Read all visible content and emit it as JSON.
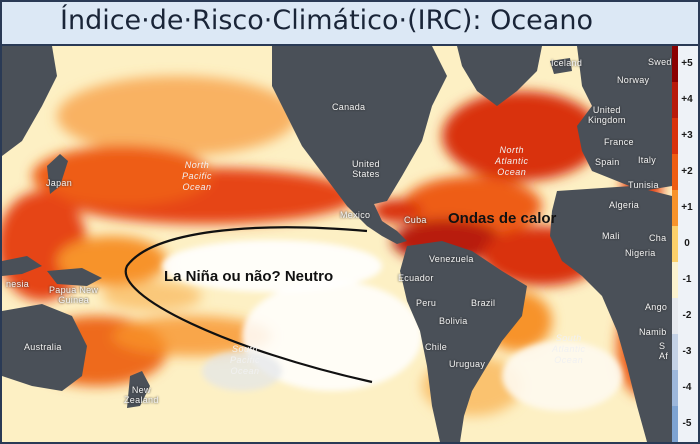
{
  "title": "Índice·de·Risco·Climático·(IRC): Oceano",
  "legend": {
    "ticks": [
      "+5",
      "+4",
      "+3",
      "+2",
      "+1",
      "0",
      "-1",
      "-2",
      "-3",
      "-4",
      "-5"
    ],
    "colors": [
      "#8b0000",
      "#b81a0a",
      "#d9320c",
      "#ee5d12",
      "#f7932a",
      "#fcd06a",
      "#fbf2cf",
      "#e6e9ee",
      "#c4d2e6",
      "#9db7da",
      "#7ea3d1"
    ]
  },
  "annotations": {
    "heatwave": "Ondas de calor",
    "enso": "La Niña ou não? Neutro"
  },
  "places": {
    "canada": "Canada",
    "usa": "United\nStates",
    "mexico": "Mexico",
    "cuba": "Cuba",
    "venezuela": "Venezuela",
    "ecuador": "Ecuador",
    "peru": "Peru",
    "brazil": "Brazil",
    "bolivia": "Bolivia",
    "chile": "Chile",
    "uruguay": "Uruguay",
    "japan": "Japan",
    "indonesia": "nesia",
    "papua": "Papua New\nGuinea",
    "australia": "Australia",
    "nz": "New\nZealand",
    "iceland": "Iceland",
    "sweden": "Swed",
    "norway": "Norway",
    "uk": "United\nKingdom",
    "france": "France",
    "spain": "Spain",
    "italy": "Italy",
    "tunisia": "Tunisia",
    "algeria": "Algeria",
    "mali": "Mali",
    "chad": "Cha",
    "nigeria": "Nigeria",
    "angola": "Ango",
    "namibia": "Namib",
    "south_africa": "S\nAf"
  },
  "oceans": {
    "north_pacific": "North\nPacific\nOcean",
    "south_pacific": "South\nPacific\nOcean",
    "north_atlantic": "North\nAtlantic\nOcean",
    "south_atlantic": "South\nAtlantic\nOcean"
  }
}
